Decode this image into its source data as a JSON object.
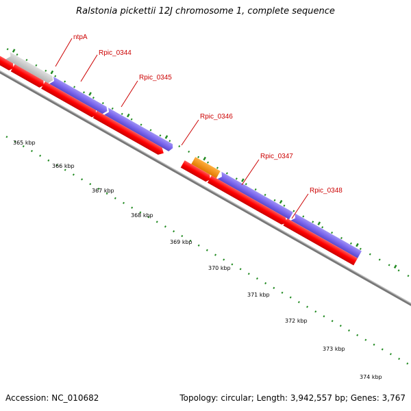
{
  "title": "Ralstonia pickettii 12J chromosome 1, complete sequence",
  "footer": {
    "accession": "Accession: NC_010682",
    "summary": "Topology: circular; Length: 3,942,557 bp; Genes: 3,767"
  },
  "colors": {
    "forward_strand_gene": "#ff0000",
    "cds_blue": "#7b68ee",
    "grey_feature": "#c8c8c8",
    "pink_feature": "#ff1493",
    "orange_feature": "#ff8c00",
    "backbone": "#888888",
    "tick": "#228b22",
    "label": "#cc0000"
  },
  "scale_labels": [
    "365 kbp",
    "366 kbp",
    "367 kbp",
    "368 kbp",
    "369 kbp",
    "370 kbp",
    "371 kbp",
    "372 kbp",
    "373 kbp",
    "374 kbp"
  ],
  "gene_labels": [
    {
      "name": "ntpA"
    },
    {
      "name": "Rpic_0344"
    },
    {
      "name": "Rpic_0345"
    },
    {
      "name": "Rpic_0346"
    },
    {
      "name": "Rpic_0347"
    },
    {
      "name": "Rpic_0348"
    }
  ]
}
